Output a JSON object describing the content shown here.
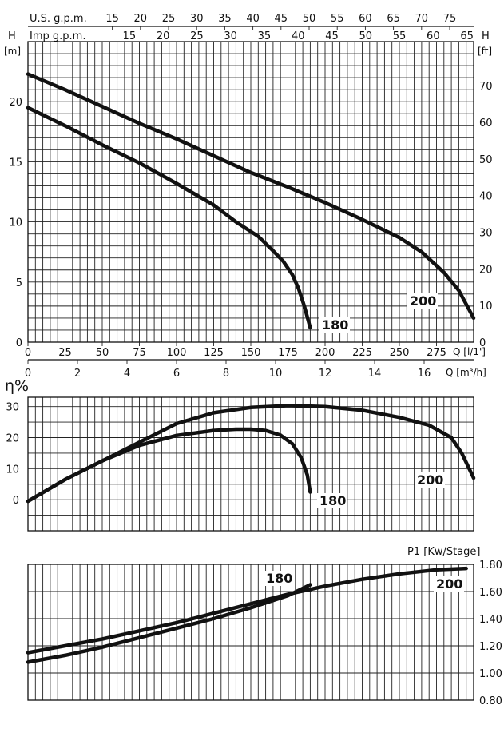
{
  "chart_data": [
    {
      "type": "line",
      "panel": "head",
      "x_axis_primary": {
        "unit_label": "Q [l/1']",
        "ticks": [
          0,
          25,
          50,
          75,
          100,
          125,
          150,
          175,
          200,
          225,
          250,
          275
        ],
        "xlim": [
          0,
          300
        ]
      },
      "x_axis_secondary": {
        "unit_label": "Q [m³/h]",
        "ticks": [
          0,
          2,
          4,
          6,
          8,
          10,
          12,
          14,
          16
        ]
      },
      "x_axis_top1": {
        "label": "U.S. g.p.m.",
        "ticks": [
          "15",
          "20",
          "25",
          "30",
          "35",
          "40",
          "45",
          "50",
          "55",
          "60",
          "65",
          "70",
          "75"
        ]
      },
      "x_axis_top2": {
        "label": "Imp g.p.m.",
        "ticks": [
          "15",
          "20",
          "25",
          "30",
          "35",
          "40",
          "45",
          "50",
          "55",
          "60",
          "65"
        ]
      },
      "y_left": {
        "label": "H",
        "unit": "[m]",
        "ticks": [
          0,
          5,
          10,
          15,
          20
        ],
        "ylim": [
          0,
          25
        ]
      },
      "y_right": {
        "label": "H",
        "unit": "[ft]",
        "ticks": [
          0,
          10,
          20,
          30,
          40,
          50,
          60,
          70
        ]
      },
      "grid": true,
      "series": [
        {
          "name": "180",
          "x": [
            0,
            25,
            50,
            75,
            100,
            125,
            140,
            155,
            165,
            172,
            178,
            182,
            186,
            190
          ],
          "y": [
            19.5,
            18.0,
            16.4,
            14.9,
            13.2,
            11.4,
            10.0,
            8.8,
            7.6,
            6.7,
            5.6,
            4.5,
            3.0,
            1.2
          ]
        },
        {
          "name": "200",
          "x": [
            0,
            25,
            50,
            75,
            100,
            125,
            150,
            175,
            200,
            225,
            250,
            265,
            280,
            290,
            300
          ],
          "y": [
            22.3,
            21.0,
            19.6,
            18.2,
            16.9,
            15.5,
            14.1,
            12.9,
            11.6,
            10.2,
            8.7,
            7.5,
            5.8,
            4.3,
            2.0
          ]
        }
      ]
    },
    {
      "type": "line",
      "panel": "efficiency",
      "y_label": "η%",
      "y_ticks": [
        0,
        10,
        20,
        30
      ],
      "ylim": [
        -10,
        33
      ],
      "xlim": [
        0,
        300
      ],
      "grid": true,
      "series": [
        {
          "name": "180",
          "x": [
            0,
            25,
            50,
            75,
            100,
            125,
            140,
            150,
            160,
            170,
            178,
            184,
            188,
            190
          ],
          "y": [
            -0.5,
            6.5,
            12.5,
            17.5,
            20.7,
            22.3,
            22.7,
            22.7,
            22.3,
            20.8,
            18.0,
            13.5,
            8.0,
            2.5
          ]
        },
        {
          "name": "200",
          "x": [
            0,
            25,
            50,
            75,
            100,
            125,
            150,
            175,
            200,
            225,
            250,
            270,
            285,
            292,
            300
          ],
          "y": [
            -0.5,
            6.5,
            12.5,
            18.5,
            24.5,
            28.0,
            29.7,
            30.3,
            30.0,
            28.8,
            26.5,
            24.0,
            20.0,
            15.0,
            7.0
          ]
        }
      ]
    },
    {
      "type": "line",
      "panel": "power",
      "title": "P1 [Kw/Stage]",
      "y_ticks": [
        "1.80",
        "1.60",
        "1.40",
        "1.20",
        "1.00",
        "0.80"
      ],
      "ylim": [
        0.8,
        1.8
      ],
      "xlim": [
        0,
        300
      ],
      "grid": true,
      "series": [
        {
          "name": "180",
          "x": [
            0,
            25,
            50,
            75,
            100,
            125,
            150,
            175,
            190
          ],
          "y": [
            1.08,
            1.13,
            1.19,
            1.26,
            1.33,
            1.4,
            1.48,
            1.57,
            1.65
          ]
        },
        {
          "name": "200",
          "x": [
            0,
            25,
            50,
            75,
            100,
            125,
            150,
            175,
            200,
            225,
            250,
            275,
            295
          ],
          "y": [
            1.15,
            1.2,
            1.25,
            1.31,
            1.37,
            1.44,
            1.51,
            1.58,
            1.64,
            1.69,
            1.73,
            1.76,
            1.77
          ]
        }
      ]
    }
  ]
}
